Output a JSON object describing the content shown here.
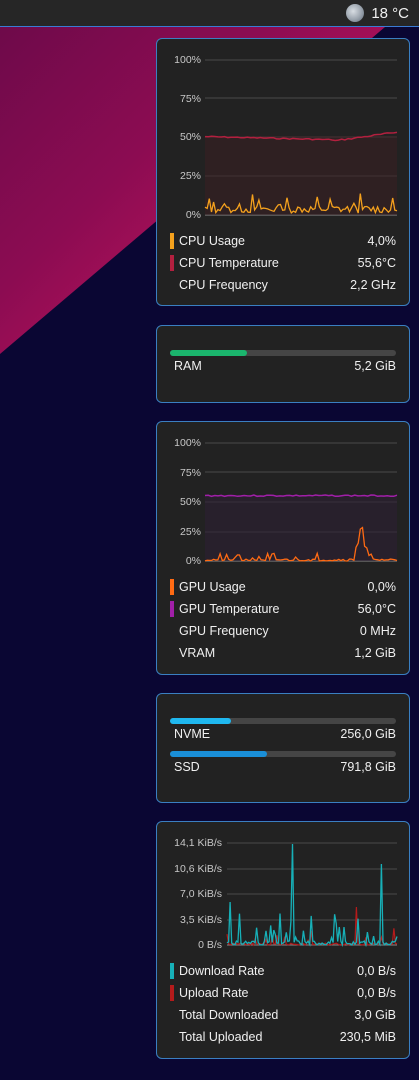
{
  "topbar": {
    "temperature": "18 °C",
    "weather_icon": "moon-icon"
  },
  "cpu": {
    "axis": [
      "100%",
      "75%",
      "50%",
      "25%",
      "0%"
    ],
    "items": [
      {
        "label": "CPU Usage",
        "value": "4,0%",
        "color": "#f4a11d"
      },
      {
        "label": "CPU Temperature",
        "value": "55,6°C",
        "color": "#b3203f"
      },
      {
        "label": "CPU Frequency",
        "value": "2,2 GHz",
        "color": ""
      }
    ]
  },
  "ram": {
    "label": "RAM",
    "value": "5,2 GiB",
    "fraction": 0.34,
    "color": "#1bb56d"
  },
  "gpu": {
    "axis": [
      "100%",
      "75%",
      "50%",
      "25%",
      "0%"
    ],
    "items": [
      {
        "label": "GPU Usage",
        "value": "0,0%",
        "color": "#ff6a13"
      },
      {
        "label": "GPU Temperature",
        "value": "56,0°C",
        "color": "#a11fa8"
      },
      {
        "label": "GPU Frequency",
        "value": "0 MHz",
        "color": ""
      },
      {
        "label": "VRAM",
        "value": "1,2 GiB",
        "color": ""
      }
    ]
  },
  "disks": [
    {
      "label": "NVME",
      "value": "256,0 GiB",
      "fraction": 0.27,
      "color": "#1fb8f0"
    },
    {
      "label": "SSD",
      "value": "791,8 GiB",
      "fraction": 0.43,
      "color": "#1a8fd8"
    }
  ],
  "network": {
    "axis": [
      "14,1 KiB/s",
      "10,6 KiB/s",
      "7,0 KiB/s",
      "3,5 KiB/s",
      "0 B/s"
    ],
    "items": [
      {
        "label": "Download Rate",
        "value": "0,0 B/s",
        "color": "#17b0b8"
      },
      {
        "label": "Upload Rate",
        "value": "0,0 B/s",
        "color": "#b51b1b"
      },
      {
        "label": "Total Downloaded",
        "value": "3,0 GiB",
        "color": ""
      },
      {
        "label": "Total Uploaded",
        "value": "230,5 MiB",
        "color": ""
      }
    ]
  }
}
